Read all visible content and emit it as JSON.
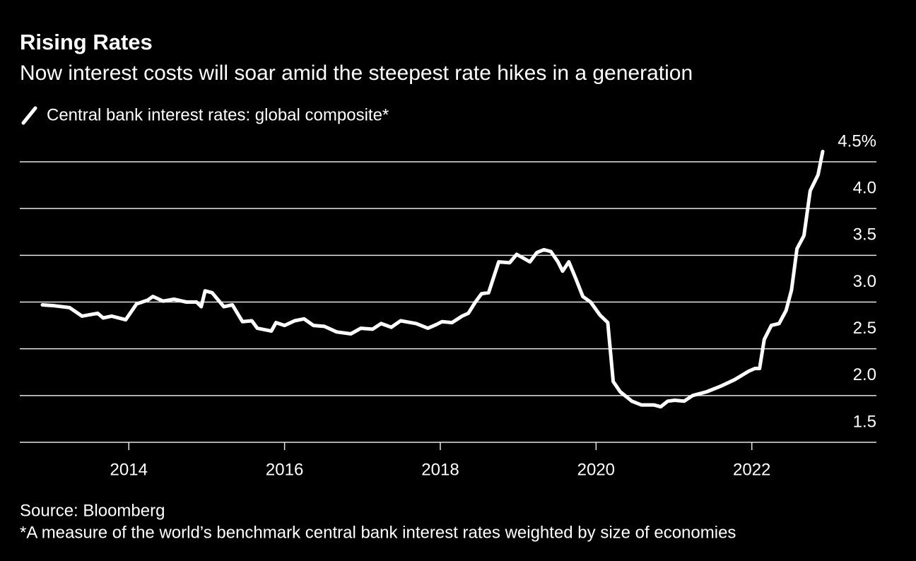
{
  "chart_data": {
    "type": "line",
    "title": "Rising Rates",
    "subtitle": "Now interest costs will soar amid the steepest rate hikes in a generation",
    "source": "Source: Bloomberg",
    "note": "*A measure of the world’s benchmark central bank interest rates weighted by size of economies",
    "x": [
      2012.89,
      2013.05,
      2013.24,
      2013.4,
      2013.6,
      2013.67,
      2013.78,
      2013.96,
      2014.1,
      2014.24,
      2014.31,
      2014.44,
      2014.58,
      2014.74,
      2014.87,
      2014.93,
      2014.98,
      2015.07,
      2015.22,
      2015.33,
      2015.46,
      2015.58,
      2015.65,
      2015.83,
      2015.89,
      2016.0,
      2016.13,
      2016.25,
      2016.37,
      2016.51,
      2016.67,
      2016.85,
      2016.98,
      2017.13,
      2017.24,
      2017.37,
      2017.49,
      2017.69,
      2017.84,
      2017.95,
      2018.02,
      2018.15,
      2018.28,
      2018.36,
      2018.45,
      2018.53,
      2018.62,
      2018.75,
      2018.89,
      2018.98,
      2019.15,
      2019.24,
      2019.33,
      2019.42,
      2019.51,
      2019.57,
      2019.65,
      2019.74,
      2019.83,
      2019.93,
      2020.05,
      2020.15,
      2020.22,
      2020.31,
      2020.46,
      2020.58,
      2020.74,
      2020.83,
      2020.92,
      2021.01,
      2021.13,
      2021.24,
      2021.42,
      2021.6,
      2021.78,
      2021.96,
      2022.04,
      2022.1,
      2022.16,
      2022.25,
      2022.35,
      2022.44,
      2022.51,
      2022.58,
      2022.67,
      2022.75,
      2022.85,
      2022.91
    ],
    "series": [
      {
        "name": "Central bank interest rates: global composite*",
        "color": "#ffffff",
        "values": [
          2.97,
          2.96,
          2.94,
          2.85,
          2.88,
          2.83,
          2.85,
          2.81,
          2.98,
          3.02,
          3.06,
          3.01,
          3.03,
          3.0,
          3.0,
          2.95,
          3.12,
          3.1,
          2.95,
          2.97,
          2.79,
          2.8,
          2.72,
          2.69,
          2.78,
          2.75,
          2.8,
          2.82,
          2.75,
          2.74,
          2.68,
          2.66,
          2.72,
          2.71,
          2.77,
          2.73,
          2.8,
          2.77,
          2.72,
          2.76,
          2.79,
          2.78,
          2.85,
          2.88,
          3.0,
          3.09,
          3.1,
          3.43,
          3.42,
          3.51,
          3.43,
          3.53,
          3.56,
          3.54,
          3.43,
          3.33,
          3.43,
          3.25,
          3.06,
          3.0,
          2.86,
          2.78,
          2.15,
          2.04,
          1.94,
          1.9,
          1.9,
          1.88,
          1.94,
          1.95,
          1.94,
          2.0,
          2.04,
          2.1,
          2.17,
          2.26,
          2.29,
          2.29,
          2.6,
          2.75,
          2.77,
          2.91,
          3.13,
          3.57,
          3.71,
          4.19,
          4.36,
          4.61
        ]
      }
    ],
    "xlim": [
      2012.6,
      2023.6
    ],
    "xticks": [
      2014,
      2016,
      2018,
      2020,
      2022
    ],
    "ylim": [
      1.5,
      4.5
    ],
    "yticks": [
      1.5,
      {
        "value": 2,
        "label": "2.0"
      },
      2.5,
      {
        "value": 3,
        "label": "3.0"
      },
      3.5,
      {
        "value": 4,
        "label": "4.0"
      },
      {
        "value": 4.5,
        "label": "4.5%"
      }
    ],
    "grid": true
  }
}
